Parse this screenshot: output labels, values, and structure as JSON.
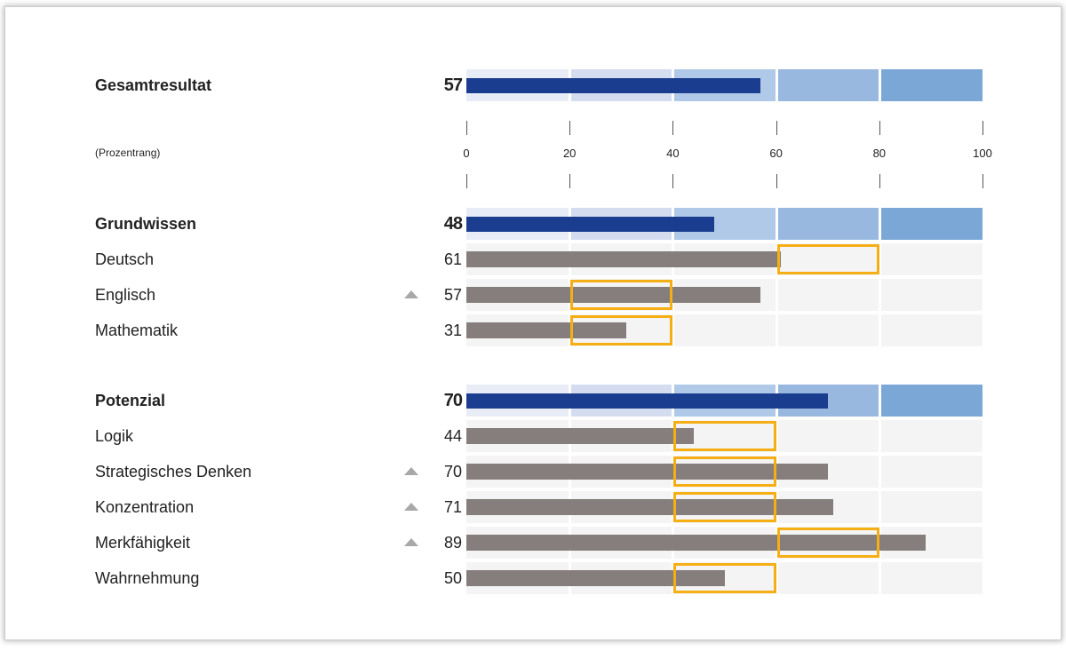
{
  "chart_data": {
    "type": "bar",
    "xlim": [
      0,
      100
    ],
    "ticks": [
      0,
      20,
      40,
      60,
      80,
      100
    ],
    "unit_label": "(Prozentrang)",
    "band_colors": [
      "#e8ecf7",
      "#d4ddf0",
      "#b0c9e8",
      "#98b8df",
      "#7ba7d7"
    ],
    "total_bar_color": "#1a3d8f",
    "sub_bar_color": "#857e7c",
    "range_box_color": "#f5ae14",
    "rows": [
      {
        "label": "Gesamtresultat",
        "value": 57,
        "kind": "total"
      },
      {
        "label": "Grundwissen",
        "value": 48,
        "kind": "total"
      },
      {
        "label": "Deutsch",
        "value": 61,
        "kind": "sub",
        "range": [
          60,
          80
        ],
        "arrow": false
      },
      {
        "label": "Englisch",
        "value": 57,
        "kind": "sub",
        "range": [
          20,
          40
        ],
        "arrow": true
      },
      {
        "label": "Mathematik",
        "value": 31,
        "kind": "sub",
        "range": [
          20,
          40
        ],
        "arrow": false
      },
      {
        "label": "Potenzial",
        "value": 70,
        "kind": "total"
      },
      {
        "label": "Logik",
        "value": 44,
        "kind": "sub",
        "range": [
          40,
          60
        ],
        "arrow": false
      },
      {
        "label": "Strategisches Denken",
        "value": 70,
        "kind": "sub",
        "range": [
          40,
          60
        ],
        "arrow": true
      },
      {
        "label": "Konzentration",
        "value": 71,
        "kind": "sub",
        "range": [
          40,
          60
        ],
        "arrow": true
      },
      {
        "label": "Merkfähigkeit",
        "value": 89,
        "kind": "sub",
        "range": [
          60,
          80
        ],
        "arrow": true
      },
      {
        "label": "Wahrnehmung",
        "value": 50,
        "kind": "sub",
        "range": [
          40,
          60
        ],
        "arrow": false
      }
    ]
  }
}
